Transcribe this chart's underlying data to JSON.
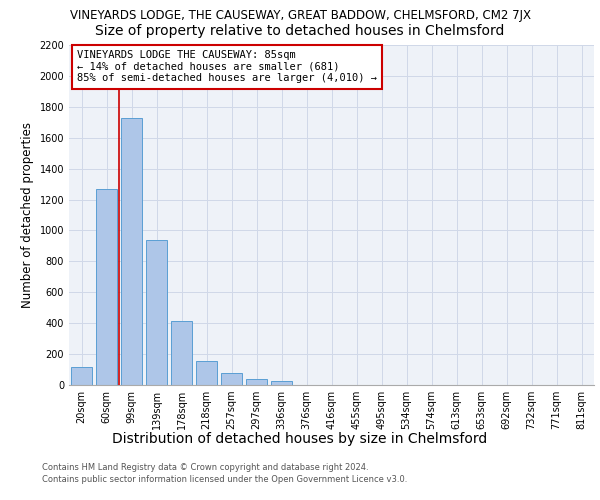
{
  "title_line1": "VINEYARDS LODGE, THE CAUSEWAY, GREAT BADDOW, CHELMSFORD, CM2 7JX",
  "title_line2": "Size of property relative to detached houses in Chelmsford",
  "xlabel": "Distribution of detached houses by size in Chelmsford",
  "ylabel": "Number of detached properties",
  "footnote_line1": "Contains HM Land Registry data © Crown copyright and database right 2024.",
  "footnote_line2": "Contains public sector information licensed under the Open Government Licence v3.0.",
  "bar_labels": [
    "20sqm",
    "60sqm",
    "99sqm",
    "139sqm",
    "178sqm",
    "218sqm",
    "257sqm",
    "297sqm",
    "336sqm",
    "376sqm",
    "416sqm",
    "455sqm",
    "495sqm",
    "534sqm",
    "574sqm",
    "613sqm",
    "653sqm",
    "692sqm",
    "732sqm",
    "771sqm",
    "811sqm"
  ],
  "bar_values": [
    115,
    1270,
    1730,
    940,
    415,
    155,
    80,
    40,
    25,
    0,
    0,
    0,
    0,
    0,
    0,
    0,
    0,
    0,
    0,
    0,
    0
  ],
  "bar_color": "#aec6e8",
  "bar_edge_color": "#5a9fd4",
  "grid_color": "#d0d8e8",
  "background_color": "#eef2f8",
  "vline_x": 1.5,
  "vline_color": "#cc0000",
  "annotation_text": "VINEYARDS LODGE THE CAUSEWAY: 85sqm\n← 14% of detached houses are smaller (681)\n85% of semi-detached houses are larger (4,010) →",
  "annotation_box_edge": "#cc0000",
  "ylim": [
    0,
    2200
  ],
  "yticks": [
    0,
    200,
    400,
    600,
    800,
    1000,
    1200,
    1400,
    1600,
    1800,
    2000,
    2200
  ],
  "title1_fontsize": 8.5,
  "title2_fontsize": 10,
  "ylabel_fontsize": 8.5,
  "xlabel_fontsize": 10,
  "tick_fontsize": 7,
  "annotation_fontsize": 7.5,
  "footnote_fontsize": 6
}
